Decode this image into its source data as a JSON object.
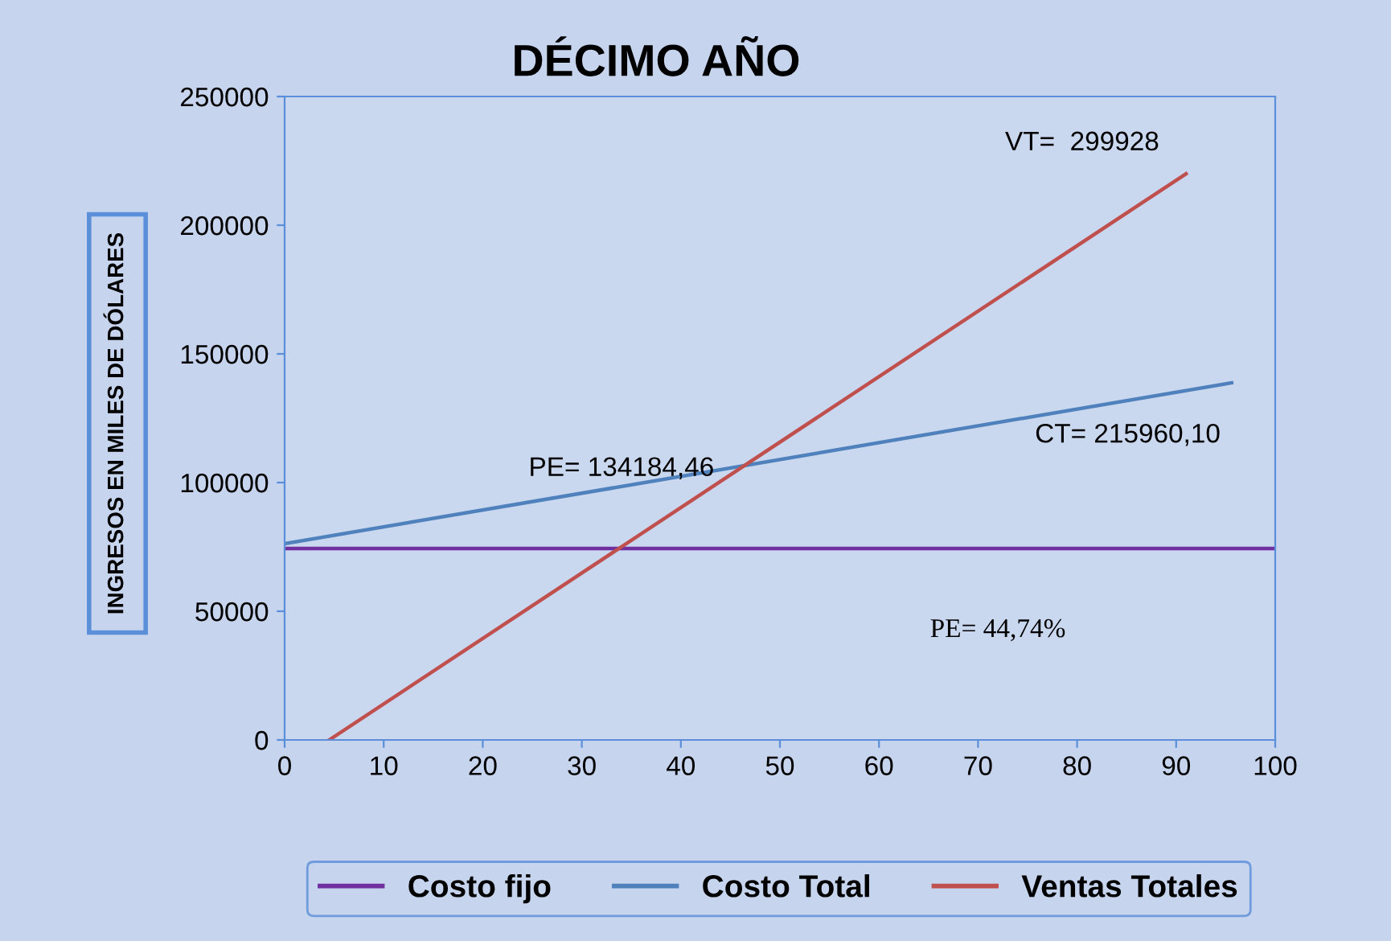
{
  "chart_data": {
    "type": "line",
    "title": "DÉCIMO AÑO",
    "ylabel": "INGRESOS EN MILES DE DÓLARES",
    "xlim": [
      0,
      100
    ],
    "xticks": [
      0,
      10,
      20,
      30,
      40,
      50,
      60,
      70,
      80,
      90,
      100
    ],
    "ylim": [
      0,
      250000
    ],
    "yticks": [
      0,
      50000,
      100000,
      150000,
      200000,
      250000
    ],
    "grid": false,
    "legend": "bottom",
    "series": [
      {
        "name": "Costo fijo",
        "color": "#7030a0",
        "x": [
          0,
          100
        ],
        "values": [
          74400,
          74400
        ]
      },
      {
        "name": "Costo Total",
        "color": "#4f81bd",
        "x": [
          0,
          95.6
        ],
        "values": [
          76250,
          138750
        ]
      },
      {
        "name": "Ventas Totales",
        "color": "#c0504d",
        "x": [
          4.5,
          91
        ],
        "values": [
          0,
          220000
        ]
      }
    ],
    "annotations": [
      {
        "text": "VT=  299928",
        "x": 91,
        "y": 220000
      },
      {
        "text": "PE= 134184,46",
        "x": 34,
        "y": 74400
      },
      {
        "text": "CT= 215960,10",
        "x": 95.6,
        "y": 138750
      },
      "PE= 44,74%"
    ]
  }
}
